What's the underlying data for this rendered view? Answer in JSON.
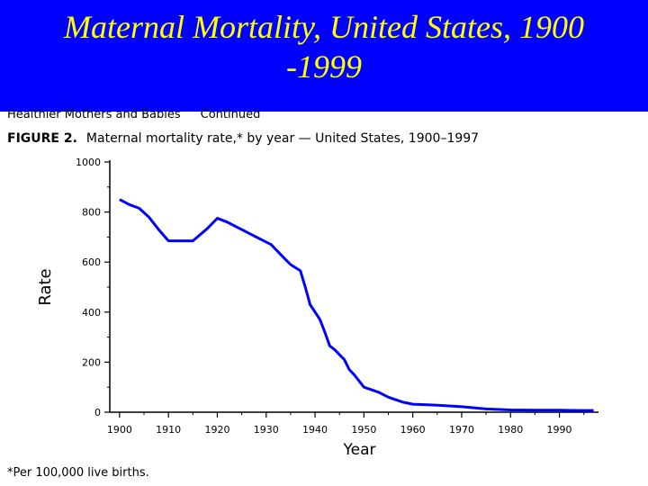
{
  "slide": {
    "title_line1": "Maternal Mortality, United States, 1900",
    "title_line2": "-1999",
    "colors": {
      "title_bg": "#0000ff",
      "title_text": "#ffff00",
      "series": "#0000ff"
    }
  },
  "figure": {
    "section": "Healthier Mothers and Babies",
    "continued": "Continued",
    "label": "FIGURE 2.",
    "caption": "Maternal mortality rate,* by year — United States, 1900–1997",
    "footnote": "*Per 100,000 live births."
  },
  "chart_data": {
    "type": "line",
    "title": "",
    "xlabel": "Year",
    "ylabel": "Rate",
    "xlim": [
      1898,
      1998
    ],
    "ylim": [
      0,
      1000
    ],
    "x_ticks": [
      "1900",
      "1910",
      "1920",
      "1930",
      "1940",
      "1950",
      "1960",
      "1970",
      "1980",
      "1990"
    ],
    "y_ticks": [
      "1000",
      "800",
      "600",
      "400",
      "200",
      "0"
    ],
    "series": [
      {
        "x": [
          1900,
          1902,
          1904,
          1906,
          1908,
          1910,
          1913,
          1915,
          1918,
          1920,
          1922,
          1925,
          1928,
          1931,
          1933,
          1935,
          1937,
          1938,
          1939,
          1940,
          1941,
          1942,
          1943,
          1944,
          1945,
          1946,
          1947,
          1948,
          1950,
          1953,
          1955,
          1958,
          1960,
          1963,
          1965,
          1970,
          1975,
          1980,
          1985,
          1990,
          1995,
          1997
        ],
        "values": [
          850,
          830,
          815,
          780,
          730,
          685,
          685,
          685,
          735,
          775,
          760,
          730,
          700,
          670,
          630,
          590,
          565,
          500,
          430,
          400,
          370,
          320,
          265,
          250,
          230,
          210,
          170,
          150,
          100,
          80,
          60,
          40,
          32,
          30,
          28,
          22,
          13,
          9,
          8,
          8,
          7,
          7
        ]
      }
    ]
  }
}
